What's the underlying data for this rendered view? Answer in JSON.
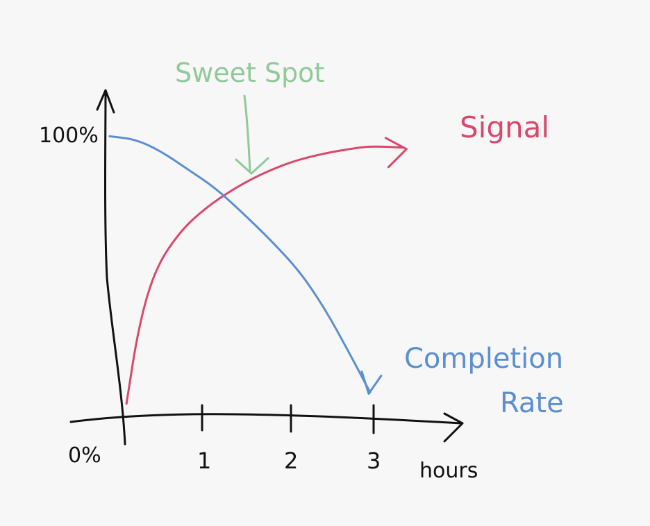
{
  "chart_data": {
    "type": "line",
    "xlabel": "hours",
    "x_ticks": [
      "1",
      "2",
      "3"
    ],
    "y_ticks": [
      "100%",
      "0%"
    ],
    "xlim": [
      0,
      3.6
    ],
    "ylim": [
      0,
      100
    ],
    "series": [
      {
        "name": "Signal",
        "color": "#d9476b",
        "points": [
          [
            0.05,
            2
          ],
          [
            0.2,
            30
          ],
          [
            0.4,
            50
          ],
          [
            0.7,
            63
          ],
          [
            1.0,
            71
          ],
          [
            1.3,
            77
          ],
          [
            1.6,
            82
          ],
          [
            2.0,
            87
          ],
          [
            2.4,
            90
          ],
          [
            2.8,
            92
          ],
          [
            3.0,
            92.5
          ],
          [
            3.35,
            92
          ]
        ]
      },
      {
        "name": "Completion Rate",
        "color": "#5b8fd0",
        "points": [
          [
            -0.15,
            96
          ],
          [
            0.15,
            95
          ],
          [
            0.45,
            91
          ],
          [
            0.8,
            84
          ],
          [
            1.1,
            78
          ],
          [
            1.4,
            70
          ],
          [
            1.75,
            60
          ],
          [
            2.1,
            49
          ],
          [
            2.4,
            36
          ],
          [
            2.7,
            20
          ],
          [
            2.95,
            6
          ]
        ]
      }
    ],
    "annotations": [
      {
        "text": "Sweet Spot",
        "color": "#8fc99a",
        "x": 1.45,
        "y": 76
      }
    ]
  }
}
